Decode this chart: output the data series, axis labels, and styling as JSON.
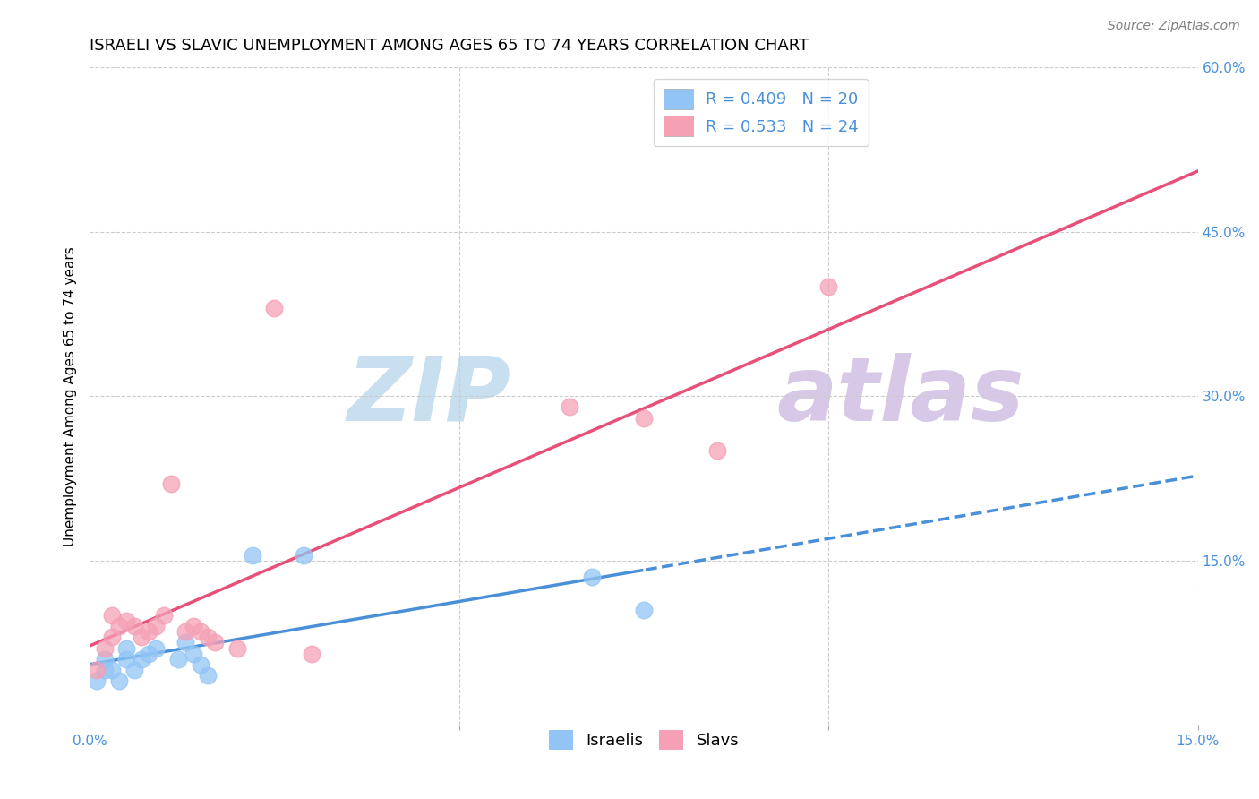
{
  "title": "ISRAELI VS SLAVIC UNEMPLOYMENT AMONG AGES 65 TO 74 YEARS CORRELATION CHART",
  "source": "Source: ZipAtlas.com",
  "ylabel": "Unemployment Among Ages 65 to 74 years",
  "xlim": [
    0.0,
    0.15
  ],
  "ylim": [
    0.0,
    0.6
  ],
  "israelis_x": [
    0.001,
    0.002,
    0.002,
    0.003,
    0.004,
    0.005,
    0.005,
    0.006,
    0.007,
    0.008,
    0.009,
    0.012,
    0.013,
    0.014,
    0.015,
    0.016,
    0.022,
    0.029,
    0.068,
    0.075
  ],
  "israelis_y": [
    0.04,
    0.05,
    0.06,
    0.05,
    0.04,
    0.06,
    0.07,
    0.05,
    0.06,
    0.065,
    0.07,
    0.06,
    0.075,
    0.065,
    0.055,
    0.045,
    0.155,
    0.155,
    0.135,
    0.105
  ],
  "slavs_x": [
    0.001,
    0.002,
    0.003,
    0.003,
    0.004,
    0.005,
    0.006,
    0.007,
    0.008,
    0.009,
    0.01,
    0.011,
    0.013,
    0.014,
    0.015,
    0.016,
    0.017,
    0.02,
    0.025,
    0.03,
    0.065,
    0.075,
    0.085,
    0.1
  ],
  "slavs_y": [
    0.05,
    0.07,
    0.08,
    0.1,
    0.09,
    0.095,
    0.09,
    0.08,
    0.085,
    0.09,
    0.1,
    0.22,
    0.085,
    0.09,
    0.085,
    0.08,
    0.075,
    0.07,
    0.38,
    0.065,
    0.29,
    0.28,
    0.25,
    0.4
  ],
  "israeli_color": "#92c5f5",
  "slav_color": "#f5a0b5",
  "israeli_line_color": "#4a90d9",
  "slav_line_color": "#e8507a",
  "watermark_zip_color": "#c8dff0",
  "watermark_atlas_color": "#d8c8e8",
  "R_israeli": 0.409,
  "N_israeli": 20,
  "R_slav": 0.533,
  "N_slav": 24,
  "grid_color": "#cccccc",
  "background_color": "#ffffff",
  "title_fontsize": 13,
  "axis_label_fontsize": 11,
  "tick_fontsize": 11,
  "legend_text_color": "#4a90d9"
}
